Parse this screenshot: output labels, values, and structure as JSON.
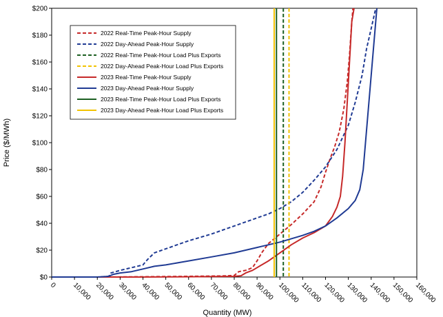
{
  "chart_data": {
    "type": "line",
    "xlabel": "Quantity (MW)",
    "ylabel": "Price ($/MWh)",
    "xlim": [
      0,
      160000
    ],
    "ylim": [
      0,
      200
    ],
    "x_ticks": [
      0,
      10000,
      20000,
      30000,
      40000,
      50000,
      60000,
      70000,
      80000,
      90000,
      100000,
      110000,
      120000,
      130000,
      140000,
      150000,
      160000
    ],
    "x_tick_labels": [
      "0",
      "10,000",
      "20,000",
      "30,000",
      "40,000",
      "50,000",
      "60,000",
      "70,000",
      "80,000",
      "90,000",
      "100,000",
      "110,000",
      "120,000",
      "130,000",
      "140,000",
      "150,000",
      "160,000"
    ],
    "y_ticks": [
      0,
      20,
      40,
      60,
      80,
      100,
      120,
      140,
      160,
      180,
      200
    ],
    "y_tick_labels": [
      "$0",
      "$20",
      "$40",
      "$60",
      "$80",
      "$100",
      "$120",
      "$140",
      "$160",
      "$180",
      "$200"
    ],
    "grid": false,
    "legend_position": "top-left",
    "series": [
      {
        "name": "2022  Real-Time Peak-Hour Supply",
        "color": "#c62828",
        "dash": "dashed",
        "kind": "curve",
        "points": [
          [
            0,
            0
          ],
          [
            20000,
            0
          ],
          [
            40000,
            0.2
          ],
          [
            60000,
            0.5
          ],
          [
            75000,
            0.8
          ],
          [
            80000,
            1.2
          ],
          [
            82000,
            4
          ],
          [
            85000,
            5
          ],
          [
            88000,
            7
          ],
          [
            90000,
            12
          ],
          [
            92000,
            18
          ],
          [
            95000,
            25
          ],
          [
            100000,
            32
          ],
          [
            105000,
            39
          ],
          [
            110000,
            47
          ],
          [
            115000,
            56
          ],
          [
            118000,
            67
          ],
          [
            120000,
            78
          ],
          [
            122000,
            88
          ],
          [
            124000,
            97
          ],
          [
            126000,
            108
          ],
          [
            128000,
            125
          ],
          [
            129500,
            145
          ],
          [
            130500,
            165
          ],
          [
            131500,
            190
          ],
          [
            132000,
            200
          ]
        ]
      },
      {
        "name": "2022  Day-Ahead Peak-Hour Supply",
        "color": "#1f3a93",
        "dash": "dashed",
        "kind": "curve",
        "points": [
          [
            0,
            0
          ],
          [
            20000,
            0
          ],
          [
            25000,
            0.5
          ],
          [
            26000,
            3
          ],
          [
            30000,
            5
          ],
          [
            35000,
            7
          ],
          [
            40000,
            9
          ],
          [
            42000,
            13
          ],
          [
            45000,
            18
          ],
          [
            50000,
            21
          ],
          [
            55000,
            24
          ],
          [
            60000,
            27
          ],
          [
            70000,
            32
          ],
          [
            80000,
            38
          ],
          [
            90000,
            44
          ],
          [
            95000,
            47
          ],
          [
            100000,
            51
          ],
          [
            105000,
            56
          ],
          [
            110000,
            63
          ],
          [
            115000,
            72
          ],
          [
            120000,
            82
          ],
          [
            125000,
            95
          ],
          [
            130000,
            113
          ],
          [
            133000,
            130
          ],
          [
            136000,
            150
          ],
          [
            138000,
            170
          ],
          [
            140000,
            185
          ],
          [
            142000,
            200
          ]
        ]
      },
      {
        "name": "2022  Real-Time Peak-Hour Load Plus Exports",
        "color": "#1b5e20",
        "dash": "dashed",
        "kind": "vline",
        "x": 101500
      },
      {
        "name": "2022  Day-Ahead Peak-Hour Load Plus Exports",
        "color": "#f2c200",
        "dash": "dashed",
        "kind": "vline",
        "x": 104000
      },
      {
        "name": "2023  Real-Time Peak-Hour Supply",
        "color": "#c62828",
        "dash": "solid",
        "kind": "curve",
        "points": [
          [
            0,
            0
          ],
          [
            20000,
            0
          ],
          [
            40000,
            0
          ],
          [
            60000,
            0.2
          ],
          [
            80000,
            0.5
          ],
          [
            83000,
            1
          ],
          [
            85000,
            3
          ],
          [
            88000,
            5
          ],
          [
            92000,
            9
          ],
          [
            95000,
            12
          ],
          [
            100000,
            18
          ],
          [
            105000,
            24
          ],
          [
            110000,
            29
          ],
          [
            115000,
            33
          ],
          [
            120000,
            38
          ],
          [
            123000,
            45
          ],
          [
            125000,
            52
          ],
          [
            126500,
            60
          ],
          [
            127500,
            75
          ],
          [
            128500,
            100
          ],
          [
            129500,
            130
          ],
          [
            130500,
            160
          ],
          [
            131500,
            190
          ],
          [
            132500,
            200
          ]
        ]
      },
      {
        "name": "2023  Day-Ahead Peak-Hour Supply",
        "color": "#1f3a93",
        "dash": "solid",
        "kind": "curve",
        "points": [
          [
            0,
            0
          ],
          [
            20000,
            0
          ],
          [
            25000,
            0.5
          ],
          [
            27000,
            2
          ],
          [
            30000,
            3
          ],
          [
            35000,
            4
          ],
          [
            40000,
            6
          ],
          [
            45000,
            8
          ],
          [
            50000,
            9
          ],
          [
            60000,
            12
          ],
          [
            70000,
            15
          ],
          [
            80000,
            18
          ],
          [
            90000,
            22
          ],
          [
            100000,
            26
          ],
          [
            110000,
            31
          ],
          [
            115000,
            34
          ],
          [
            120000,
            38
          ],
          [
            125000,
            44
          ],
          [
            130000,
            51
          ],
          [
            133000,
            57
          ],
          [
            135000,
            65
          ],
          [
            136500,
            80
          ],
          [
            137500,
            100
          ],
          [
            138500,
            120
          ],
          [
            139500,
            140
          ],
          [
            140500,
            160
          ],
          [
            141500,
            180
          ],
          [
            142500,
            200
          ]
        ]
      },
      {
        "name": "2023  Real-Time Peak-Hour Load Plus Exports",
        "color": "#1b5e20",
        "dash": "solid",
        "kind": "vline",
        "x": 98500
      },
      {
        "name": "2023  Day-Ahead Peak-Hour Load Plus Exports",
        "color": "#f2c200",
        "dash": "solid",
        "kind": "vline",
        "x": 97500
      }
    ]
  }
}
